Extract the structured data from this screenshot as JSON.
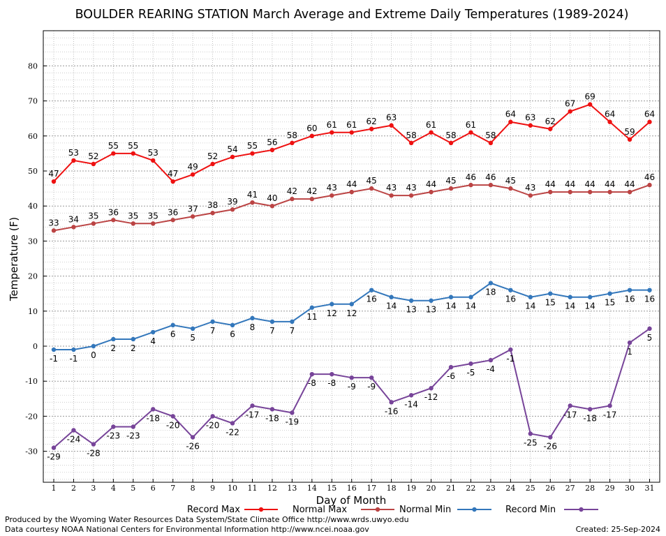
{
  "chart_data": {
    "type": "line",
    "title": "BOULDER REARING STATION March Average and Extreme Daily Temperatures (1989-2024)",
    "xlabel": "Day of Month",
    "ylabel": "Temperature (F)",
    "ylim": [
      -40,
      90
    ],
    "yticks": [
      -30,
      -20,
      -10,
      0,
      10,
      20,
      30,
      40,
      50,
      60,
      70,
      80
    ],
    "x": [
      1,
      2,
      3,
      4,
      5,
      6,
      7,
      8,
      9,
      10,
      11,
      12,
      13,
      14,
      15,
      16,
      17,
      18,
      19,
      20,
      21,
      22,
      23,
      24,
      25,
      26,
      27,
      28,
      29,
      30,
      31
    ],
    "grid": true,
    "legend_position": "bottom",
    "series": [
      {
        "name": "Record Max",
        "color": "#ee1111",
        "values": [
          47,
          53,
          52,
          55,
          55,
          53,
          47,
          49,
          52,
          54,
          55,
          56,
          58,
          60,
          61,
          61,
          62,
          63,
          58,
          61,
          58,
          61,
          58,
          64,
          63,
          62,
          67,
          69,
          64,
          59,
          64
        ]
      },
      {
        "name": "Normal Max",
        "color": "#bb4444",
        "values": [
          33,
          34,
          35,
          36,
          35,
          35,
          36,
          37,
          38,
          39,
          41,
          40,
          42,
          42,
          43,
          44,
          45,
          43,
          43,
          44,
          45,
          46,
          46,
          45,
          43,
          44,
          44,
          44,
          44,
          44,
          46
        ]
      },
      {
        "name": "Normal Min",
        "color": "#3377bb",
        "values": [
          -1,
          -1,
          0,
          2,
          2,
          4,
          6,
          5,
          7,
          6,
          8,
          7,
          7,
          11,
          12,
          12,
          16,
          14,
          13,
          13,
          14,
          14,
          18,
          16,
          14,
          15,
          14,
          14,
          15,
          16,
          16
        ]
      },
      {
        "name": "Record Min",
        "color": "#774499",
        "values": [
          -29,
          -24,
          -28,
          -23,
          -23,
          -18,
          -20,
          -26,
          -20,
          -22,
          -17,
          -18,
          -19,
          -8,
          -8,
          -9,
          -9,
          -16,
          -14,
          -12,
          -6,
          -5,
          -4,
          -1,
          -25,
          -26,
          -17,
          -18,
          -17,
          1,
          5
        ]
      }
    ]
  },
  "footer": {
    "produced_by": "Produced by the Wyoming Water Resources Data System/State Climate Office http://www.wrds.uwyo.edu",
    "data_courtesy": "Data courtesy NOAA National Centers for Environmental Information http://www.ncei.noaa.gov",
    "created": "Created:  25-Sep-2024"
  }
}
